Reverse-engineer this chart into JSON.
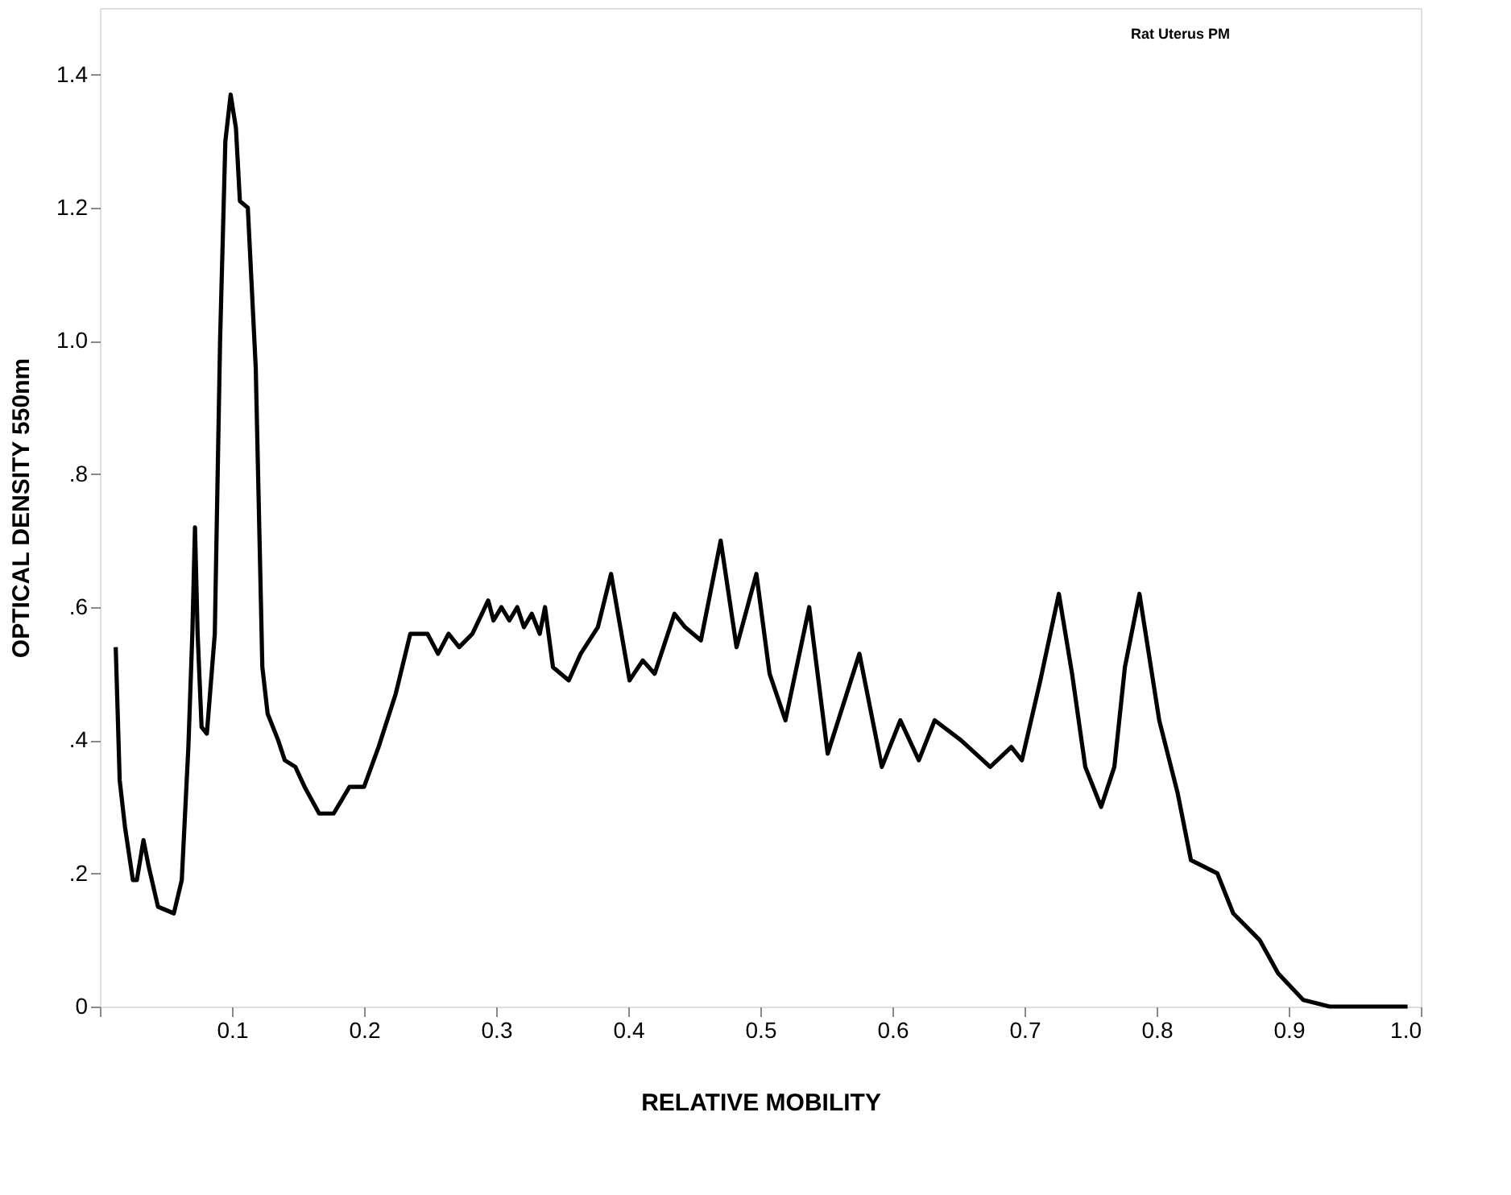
{
  "chart_data": {
    "type": "line",
    "xlabel": "RELATIVE  MOBILITY",
    "ylabel": "OPTICAL  DENSITY  550nm",
    "annotations": [
      "Rat Uterus PM"
    ],
    "x": [
      0.012,
      0.015,
      0.019,
      0.025,
      0.028,
      0.033,
      0.037,
      0.044,
      0.056,
      0.062,
      0.067,
      0.07,
      0.072,
      0.074,
      0.077,
      0.081,
      0.087,
      0.091,
      0.095,
      0.099,
      0.103,
      0.106,
      0.112,
      0.118,
      0.123,
      0.127,
      0.135,
      0.14,
      0.148,
      0.155,
      0.166,
      0.177,
      0.189,
      0.2,
      0.211,
      0.224,
      0.235,
      0.248,
      0.256,
      0.264,
      0.272,
      0.282,
      0.294,
      0.298,
      0.304,
      0.31,
      0.316,
      0.321,
      0.327,
      0.333,
      0.337,
      0.343,
      0.355,
      0.364,
      0.377,
      0.387,
      0.401,
      0.411,
      0.42,
      0.435,
      0.443,
      0.455,
      0.47,
      0.482,
      0.497,
      0.507,
      0.519,
      0.537,
      0.551,
      0.575,
      0.592,
      0.606,
      0.62,
      0.632,
      0.652,
      0.674,
      0.69,
      0.698,
      0.712,
      0.726,
      0.736,
      0.746,
      0.758,
      0.768,
      0.776,
      0.787,
      0.802,
      0.816,
      0.826,
      0.846,
      0.858,
      0.878,
      0.892,
      0.911,
      0.931,
      0.99
    ],
    "series": [
      {
        "color": "#000000",
        "values": [
          0.54,
          0.34,
          0.27,
          0.19,
          0.19,
          0.25,
          0.21,
          0.15,
          0.14,
          0.19,
          0.39,
          0.56,
          0.72,
          0.56,
          0.42,
          0.41,
          0.56,
          1.0,
          1.3,
          1.37,
          1.32,
          1.21,
          1.2,
          0.96,
          0.51,
          0.44,
          0.4,
          0.37,
          0.36,
          0.33,
          0.29,
          0.29,
          0.33,
          0.33,
          0.39,
          0.47,
          0.56,
          0.56,
          0.53,
          0.56,
          0.54,
          0.56,
          0.61,
          0.58,
          0.6,
          0.58,
          0.6,
          0.57,
          0.59,
          0.56,
          0.6,
          0.51,
          0.49,
          0.53,
          0.57,
          0.65,
          0.49,
          0.52,
          0.5,
          0.59,
          0.57,
          0.55,
          0.7,
          0.54,
          0.65,
          0.5,
          0.43,
          0.6,
          0.38,
          0.53,
          0.36,
          0.43,
          0.37,
          0.43,
          0.4,
          0.36,
          0.39,
          0.37,
          0.49,
          0.62,
          0.5,
          0.36,
          0.3,
          0.36,
          0.51,
          0.62,
          0.43,
          0.32,
          0.22,
          0.2,
          0.14,
          0.1,
          0.05,
          0.01,
          0.0,
          0.0
        ]
      }
    ],
    "xlim": [
      0,
      1.0
    ],
    "xticks": [
      {
        "value": 0,
        "label": null
      },
      0.1,
      0.2,
      0.3,
      0.4,
      0.5,
      0.6,
      0.7,
      0.8,
      0.9,
      {
        "value": 1.0,
        "label": "1.0"
      }
    ],
    "ylim": [
      0,
      1.5
    ],
    "yticks": [
      0,
      {
        "value": 0.2,
        "label": ".2"
      },
      {
        "value": 0.4,
        "label": ".4"
      },
      {
        "value": 0.6,
        "label": ".6"
      },
      {
        "value": 0.8,
        "label": ".8"
      },
      {
        "value": 1.0,
        "label": "1.0"
      },
      {
        "value": 1.2,
        "label": "1.2"
      },
      {
        "value": 1.4,
        "label": "1.4"
      }
    ],
    "grid": false,
    "line_style": "solid"
  }
}
